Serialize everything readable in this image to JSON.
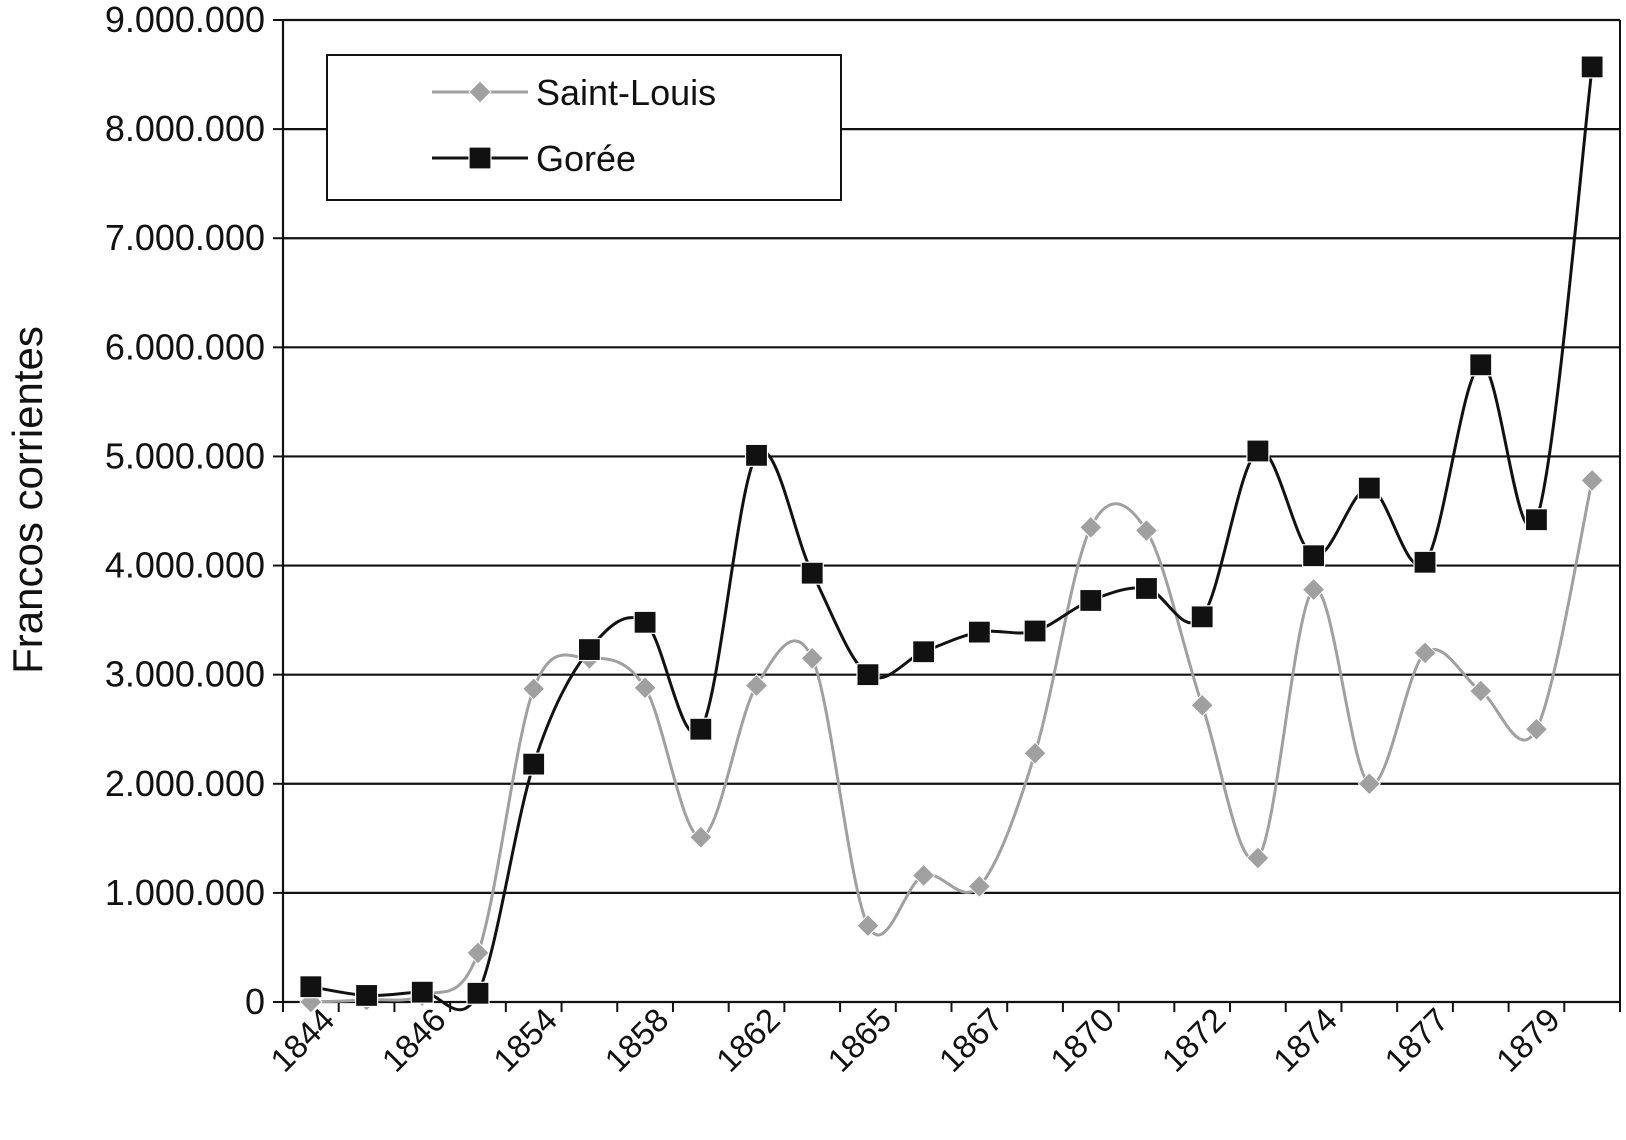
{
  "chart_data": {
    "type": "line",
    "title": "",
    "xlabel": "",
    "ylabel": "Francos corrientes",
    "ylim": [
      0,
      9000000
    ],
    "y_ticks": [
      0,
      1000000,
      2000000,
      3000000,
      4000000,
      5000000,
      6000000,
      7000000,
      8000000,
      9000000
    ],
    "y_tick_labels": [
      "0",
      "1.000.000",
      "2.000.000",
      "3.000.000",
      "4.000.000",
      "5.000.000",
      "6.000.000",
      "7.000.000",
      "8.000.000",
      "9.000.000"
    ],
    "x_tick_labels": [
      "1844",
      "1846",
      "1854",
      "1858",
      "1862",
      "1865",
      "1867",
      "1870",
      "1872",
      "1874",
      "1877",
      "1879"
    ],
    "grid": "horizontal",
    "legend_position": "top-left",
    "smooth": true,
    "series": [
      {
        "name": "Saint-Louis",
        "color": "#a0a0a0",
        "marker": "diamond",
        "values": [
          0,
          20000,
          60000,
          450000,
          2870000,
          3150000,
          2880000,
          1510000,
          2900000,
          3150000,
          700000,
          1160000,
          1060000,
          2280000,
          4350000,
          4320000,
          2720000,
          1320000,
          3780000,
          2000000,
          3200000,
          2850000,
          2500000,
          4780000
        ]
      },
      {
        "name": "Gorée",
        "color": "#111111",
        "marker": "square",
        "values": [
          140000,
          60000,
          90000,
          80000,
          2180000,
          3230000,
          3480000,
          2500000,
          5010000,
          3930000,
          3000000,
          3210000,
          3390000,
          3400000,
          3680000,
          3790000,
          3530000,
          5050000,
          4090000,
          4710000,
          4030000,
          5840000,
          4420000,
          8570000
        ]
      }
    ]
  }
}
